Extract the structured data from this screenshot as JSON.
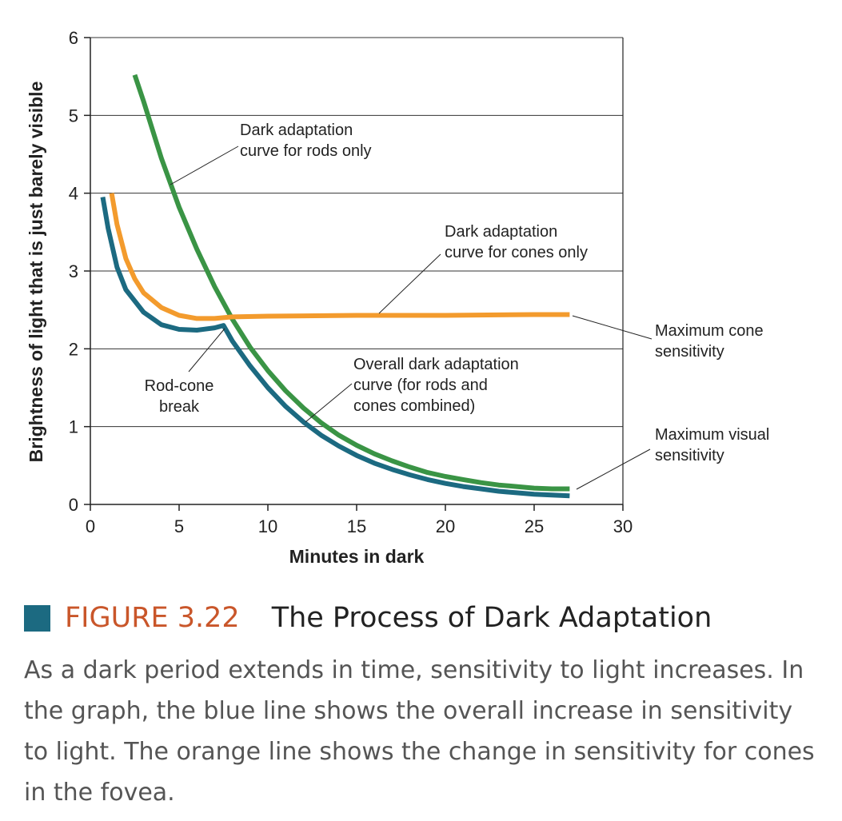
{
  "chart_data": {
    "type": "line",
    "xlabel": "Minutes in dark",
    "ylabel": "Brightness of light that is just barely visible",
    "xlim": [
      0,
      30
    ],
    "ylim": [
      0,
      6
    ],
    "x_ticks": [
      0,
      5,
      10,
      15,
      20,
      25,
      30
    ],
    "y_ticks": [
      0,
      1,
      2,
      3,
      4,
      5,
      6
    ],
    "grid": "horizontal",
    "series": [
      {
        "key": "rods",
        "color": "#3a9445",
        "points": [
          [
            2.5,
            5.52
          ],
          [
            3,
            5.18
          ],
          [
            4,
            4.45
          ],
          [
            5,
            3.82
          ],
          [
            6,
            3.28
          ],
          [
            7,
            2.8
          ],
          [
            8,
            2.38
          ],
          [
            9,
            2.02
          ],
          [
            10,
            1.72
          ],
          [
            11,
            1.46
          ],
          [
            12,
            1.24
          ],
          [
            13,
            1.05
          ],
          [
            14,
            0.89
          ],
          [
            15,
            0.76
          ],
          [
            16,
            0.65
          ],
          [
            17,
            0.56
          ],
          [
            18,
            0.48
          ],
          [
            19,
            0.41
          ],
          [
            20,
            0.36
          ],
          [
            21,
            0.32
          ],
          [
            22,
            0.28
          ],
          [
            23,
            0.25
          ],
          [
            24,
            0.23
          ],
          [
            25,
            0.21
          ],
          [
            26,
            0.2
          ],
          [
            27,
            0.2
          ]
        ]
      },
      {
        "key": "cones",
        "color": "#f39b2d",
        "points": [
          [
            1.2,
            4.0
          ],
          [
            1.5,
            3.6
          ],
          [
            2,
            3.16
          ],
          [
            2.5,
            2.9
          ],
          [
            3,
            2.72
          ],
          [
            4,
            2.53
          ],
          [
            5,
            2.43
          ],
          [
            6,
            2.39
          ],
          [
            7,
            2.39
          ],
          [
            8,
            2.41
          ],
          [
            10,
            2.42
          ],
          [
            15,
            2.43
          ],
          [
            20,
            2.43
          ],
          [
            25,
            2.44
          ],
          [
            27,
            2.44
          ]
        ]
      },
      {
        "key": "overall",
        "color": "#1c6a81",
        "points": [
          [
            0.7,
            3.95
          ],
          [
            1,
            3.55
          ],
          [
            1.5,
            3.05
          ],
          [
            2,
            2.76
          ],
          [
            3,
            2.47
          ],
          [
            4,
            2.31
          ],
          [
            5,
            2.25
          ],
          [
            6,
            2.24
          ],
          [
            7,
            2.27
          ],
          [
            7.5,
            2.3
          ],
          [
            8,
            2.1
          ],
          [
            9,
            1.78
          ],
          [
            10,
            1.5
          ],
          [
            11,
            1.26
          ],
          [
            12,
            1.06
          ],
          [
            13,
            0.89
          ],
          [
            14,
            0.75
          ],
          [
            15,
            0.63
          ],
          [
            16,
            0.53
          ],
          [
            17,
            0.45
          ],
          [
            18,
            0.38
          ],
          [
            19,
            0.32
          ],
          [
            20,
            0.27
          ],
          [
            21,
            0.23
          ],
          [
            22,
            0.2
          ],
          [
            23,
            0.17
          ],
          [
            24,
            0.15
          ],
          [
            25,
            0.13
          ],
          [
            26,
            0.12
          ],
          [
            27,
            0.11
          ]
        ]
      }
    ],
    "annotations": {
      "rods": [
        "Dark adaptation",
        "curve for rods only"
      ],
      "cones": [
        "Dark adaptation",
        "curve for cones only"
      ],
      "max_cone": [
        "Maximum cone",
        "sensitivity"
      ],
      "rod_cone": [
        "Rod-cone",
        "break"
      ],
      "overall": [
        "Overall dark adaptation",
        "curve (for rods and",
        "cones combined)"
      ],
      "max_visual": [
        "Maximum visual",
        "sensitivity"
      ]
    }
  },
  "figure": {
    "number": "FIGURE 3.22",
    "title": "The Process of Dark Adaptation",
    "caption": "As a dark period extends in time, sensitivity to light increases. In the graph, the blue line shows the overall increase in sensitivity to light. The orange line shows the change in sensitivity for cones in the fovea.",
    "accent_color": "#1c6a81",
    "number_color": "#c9562a"
  }
}
